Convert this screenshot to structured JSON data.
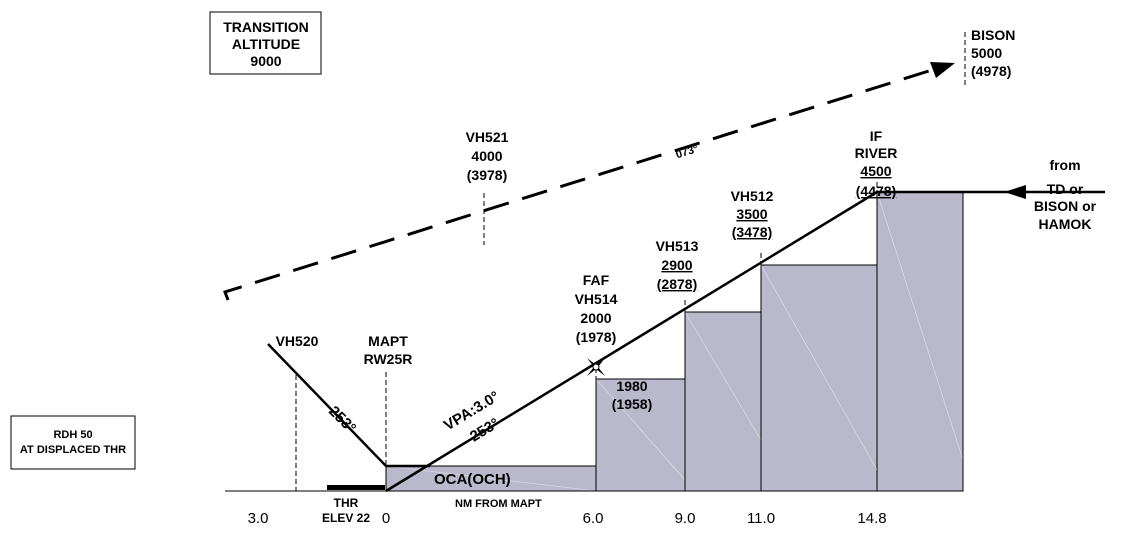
{
  "colors": {
    "step_fill": "#bab8cb",
    "line": "#000000",
    "background": "#ffffff"
  },
  "transition_box": {
    "line1": "TRANSITION",
    "line2": "ALTITUDE",
    "line3": "9000"
  },
  "rdh_box": {
    "line1": "RDH 50",
    "line2": "AT DISPLACED THR"
  },
  "fixes": {
    "bison": {
      "name": "BISON",
      "alt": "5000",
      "height": "(4978)"
    },
    "vh521": {
      "name": "VH521",
      "alt": "4000",
      "height": "(3978)"
    },
    "vh520": {
      "name": "VH520"
    },
    "mapt": {
      "line1": "MAPT",
      "line2": "RW25R"
    },
    "faf": {
      "line1": "FAF",
      "line2": "VH514",
      "alt": "2000",
      "height": "(1978)"
    },
    "vh513": {
      "name": "VH513",
      "alt": "2900",
      "height": "(2878)"
    },
    "vh512": {
      "name": "VH512",
      "alt": "3500",
      "height": "(3478)"
    },
    "iff": {
      "line1": "IF",
      "line2": "RIVER",
      "alt": "4500",
      "height": "(4478)"
    }
  },
  "missed_track": "073°",
  "inbound_track": "253°",
  "vpa": {
    "line1": "VPA:3.0°",
    "line2": "253°"
  },
  "oca": "OCA(OCH)",
  "nm_label": "NM FROM MAPT",
  "thr": {
    "line1": "THR",
    "line2": "ELEV 22"
  },
  "step_label": {
    "alt": "1980",
    "height": "(1958)"
  },
  "from_label": {
    "line1": "from",
    "line2": "TD or",
    "line3": "BISON or",
    "line4": "HAMOK"
  },
  "distances": [
    "3.0",
    "0",
    "6.0",
    "9.0",
    "11.0",
    "14.8"
  ]
}
